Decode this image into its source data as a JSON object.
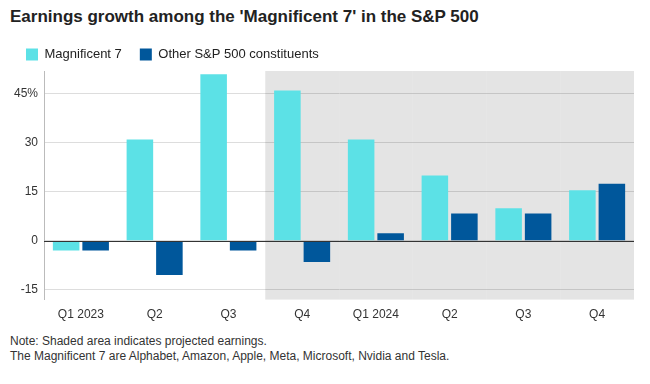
{
  "chart_data": {
    "type": "bar",
    "title": "Earnings growth among the 'Magnificent 7' in the S&P 500",
    "categories": [
      "Q1 2023",
      "Q2",
      "Q3",
      "Q4",
      "Q1 2024",
      "Q2",
      "Q3",
      "Q4"
    ],
    "series": [
      {
        "name": "Magnificent 7",
        "color": "#5ce1e6",
        "values": [
          -3,
          31,
          51,
          46,
          31,
          20,
          10,
          15.5
        ]
      },
      {
        "name": "Other S&P 500 constituents",
        "color": "#00579b",
        "values": [
          -3,
          -10.5,
          -3,
          -6.5,
          2.3,
          8.4,
          8.4,
          17.5
        ]
      }
    ],
    "projected": [
      false,
      false,
      false,
      true,
      true,
      true,
      true,
      true
    ],
    "ylim": [
      -18,
      52
    ],
    "yticks": [
      -15,
      0,
      15,
      30,
      {
        "value": 45,
        "label": "45%"
      }
    ],
    "grid": true,
    "legend": "top-left",
    "notes": [
      "Note: Shaded area indicates projected earnings.",
      "The Magnificent 7 are Alphabet, Amazon, Apple, Meta, Microsoft, Nvidia and Tesla."
    ]
  }
}
